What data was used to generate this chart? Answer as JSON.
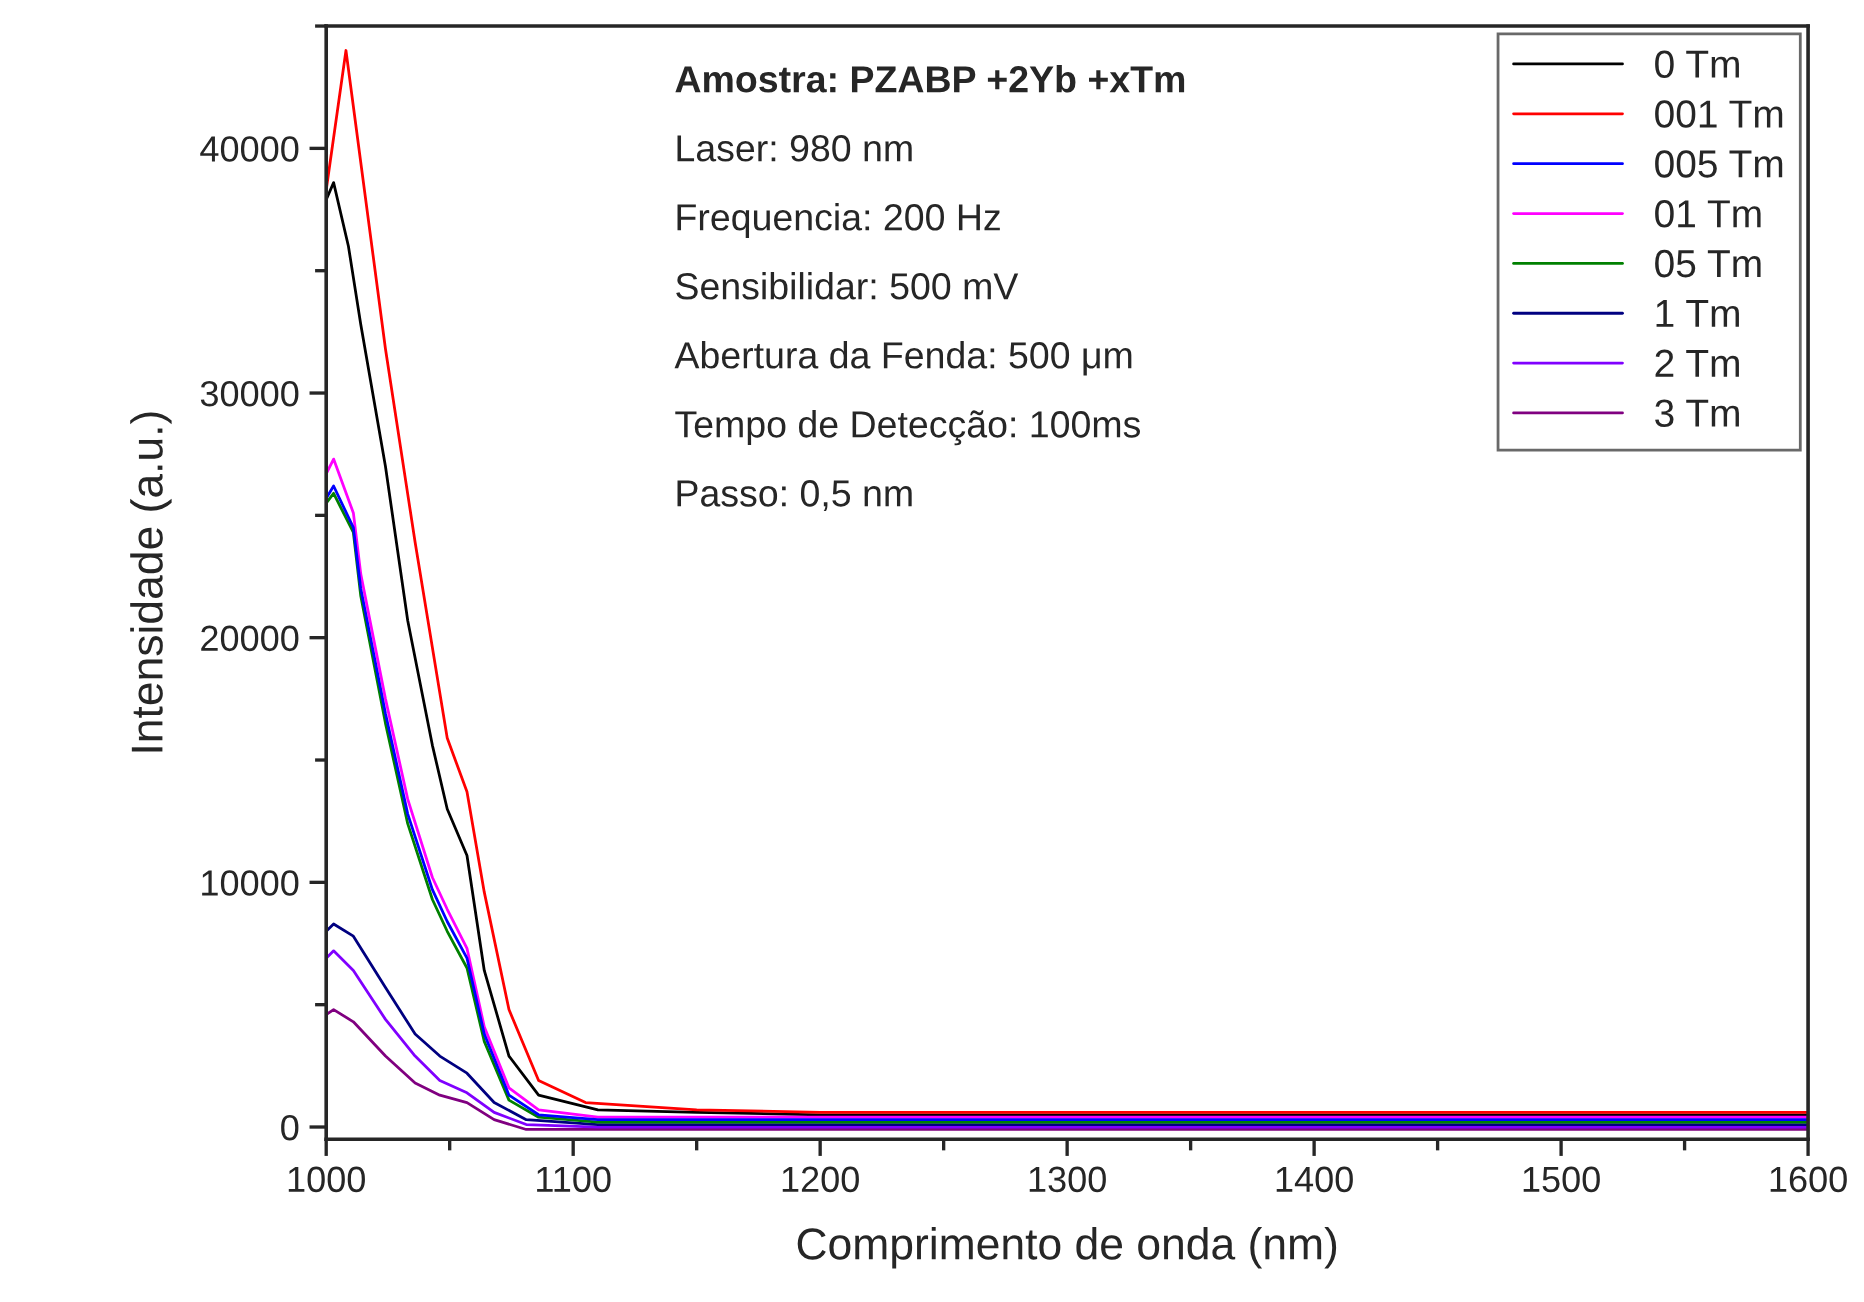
{
  "chart_data": {
    "type": "line",
    "xlabel": "Comprimento de onda (nm)",
    "ylabel": "Intensidade (a.u.)",
    "xlim": [
      1000,
      1600
    ],
    "ylim": [
      -500,
      45000
    ],
    "xticks": [
      1000,
      1100,
      1200,
      1300,
      1400,
      1500,
      1600
    ],
    "yticks": [
      0,
      10000,
      20000,
      30000,
      40000
    ],
    "grid": false,
    "legend": "top right",
    "marker": "none",
    "line_style": "solid",
    "annotations": [
      "Amostra: PZABP +2Yb +xTm",
      "Laser: 980 nm",
      "Frequencia: 200 Hz",
      "Sensibilidar: 500 mV",
      "Abertura da Fenda: 500 μm",
      "Tempo de Detecção: 100ms",
      "Passo: 0,5 nm"
    ],
    "series": [
      {
        "name": "0 Tm",
        "color": "#000000",
        "x": [
          1000,
          1003,
          1009,
          1014,
          1024,
          1033,
          1043,
          1049,
          1057,
          1064,
          1074,
          1086,
          1110,
          1150,
          1200,
          1300,
          1400,
          1500,
          1600
        ],
        "values": [
          37900,
          38600,
          36000,
          32800,
          27000,
          20700,
          15600,
          13000,
          11100,
          6400,
          2900,
          1300,
          700,
          600,
          500,
          500,
          500,
          500,
          500
        ]
      },
      {
        "name": "001 Tm",
        "color": "#ff0000",
        "x": [
          1000,
          1008,
          1024,
          1036,
          1049,
          1057,
          1064,
          1074,
          1086,
          1105,
          1150,
          1200,
          1300,
          1400,
          1500,
          1600
        ],
        "values": [
          38300,
          44000,
          31800,
          23900,
          15900,
          13700,
          9600,
          4800,
          1900,
          1000,
          700,
          600,
          600,
          600,
          600,
          600
        ]
      },
      {
        "name": "005 Tm",
        "color": "#0000ff",
        "x": [
          1000,
          1003,
          1011,
          1014,
          1024,
          1033,
          1043,
          1049,
          1057,
          1064,
          1074,
          1086,
          1110,
          1150,
          1200,
          1300,
          1400,
          1500,
          1600
        ],
        "values": [
          25700,
          26200,
          24500,
          22000,
          16900,
          12800,
          9700,
          8400,
          6900,
          3800,
          1300,
          500,
          300,
          300,
          300,
          300,
          300,
          300,
          300
        ]
      },
      {
        "name": "01 Tm",
        "color": "#ff00ff",
        "x": [
          1000,
          1003,
          1011,
          1014,
          1024,
          1033,
          1043,
          1049,
          1057,
          1064,
          1074,
          1086,
          1110,
          1150,
          1200,
          1300,
          1400,
          1500,
          1600
        ],
        "values": [
          26700,
          27300,
          25100,
          22600,
          17500,
          13400,
          10200,
          8900,
          7300,
          4100,
          1600,
          700,
          400,
          400,
          400,
          400,
          400,
          400,
          400
        ]
      },
      {
        "name": "05 Tm",
        "color": "#008000",
        "x": [
          1000,
          1003,
          1011,
          1014,
          1024,
          1033,
          1043,
          1049,
          1057,
          1064,
          1074,
          1086,
          1110,
          1150,
          1200,
          1300,
          1400,
          1500,
          1600
        ],
        "values": [
          25500,
          25900,
          24300,
          21700,
          16500,
          12400,
          9300,
          8000,
          6500,
          3500,
          1100,
          400,
          200,
          200,
          200,
          200,
          200,
          200,
          200
        ]
      },
      {
        "name": "1 Tm",
        "color": "#000080",
        "x": [
          1000,
          1003,
          1011,
          1024,
          1036,
          1046,
          1057,
          1068,
          1081,
          1110,
          1200,
          1300,
          1400,
          1500,
          1600
        ],
        "values": [
          8000,
          8300,
          7800,
          5700,
          3800,
          2900,
          2200,
          1000,
          300,
          100,
          100,
          100,
          100,
          100,
          100
        ]
      },
      {
        "name": "2 Tm",
        "color": "#8000ff",
        "x": [
          1000,
          1003,
          1011,
          1024,
          1036,
          1046,
          1057,
          1068,
          1081,
          1110,
          1200,
          1300,
          1400,
          1500,
          1600
        ],
        "values": [
          6900,
          7200,
          6400,
          4400,
          2900,
          1900,
          1400,
          600,
          100,
          0,
          0,
          0,
          0,
          0,
          0
        ]
      },
      {
        "name": "3 Tm",
        "color": "#800080",
        "x": [
          1000,
          1003,
          1011,
          1024,
          1036,
          1046,
          1057,
          1068,
          1081,
          1110,
          1200,
          1300,
          1400,
          1500,
          1600
        ],
        "values": [
          4600,
          4800,
          4300,
          2900,
          1800,
          1300,
          1000,
          300,
          -100,
          -100,
          -100,
          -100,
          -100,
          -100,
          -100
        ]
      }
    ]
  }
}
